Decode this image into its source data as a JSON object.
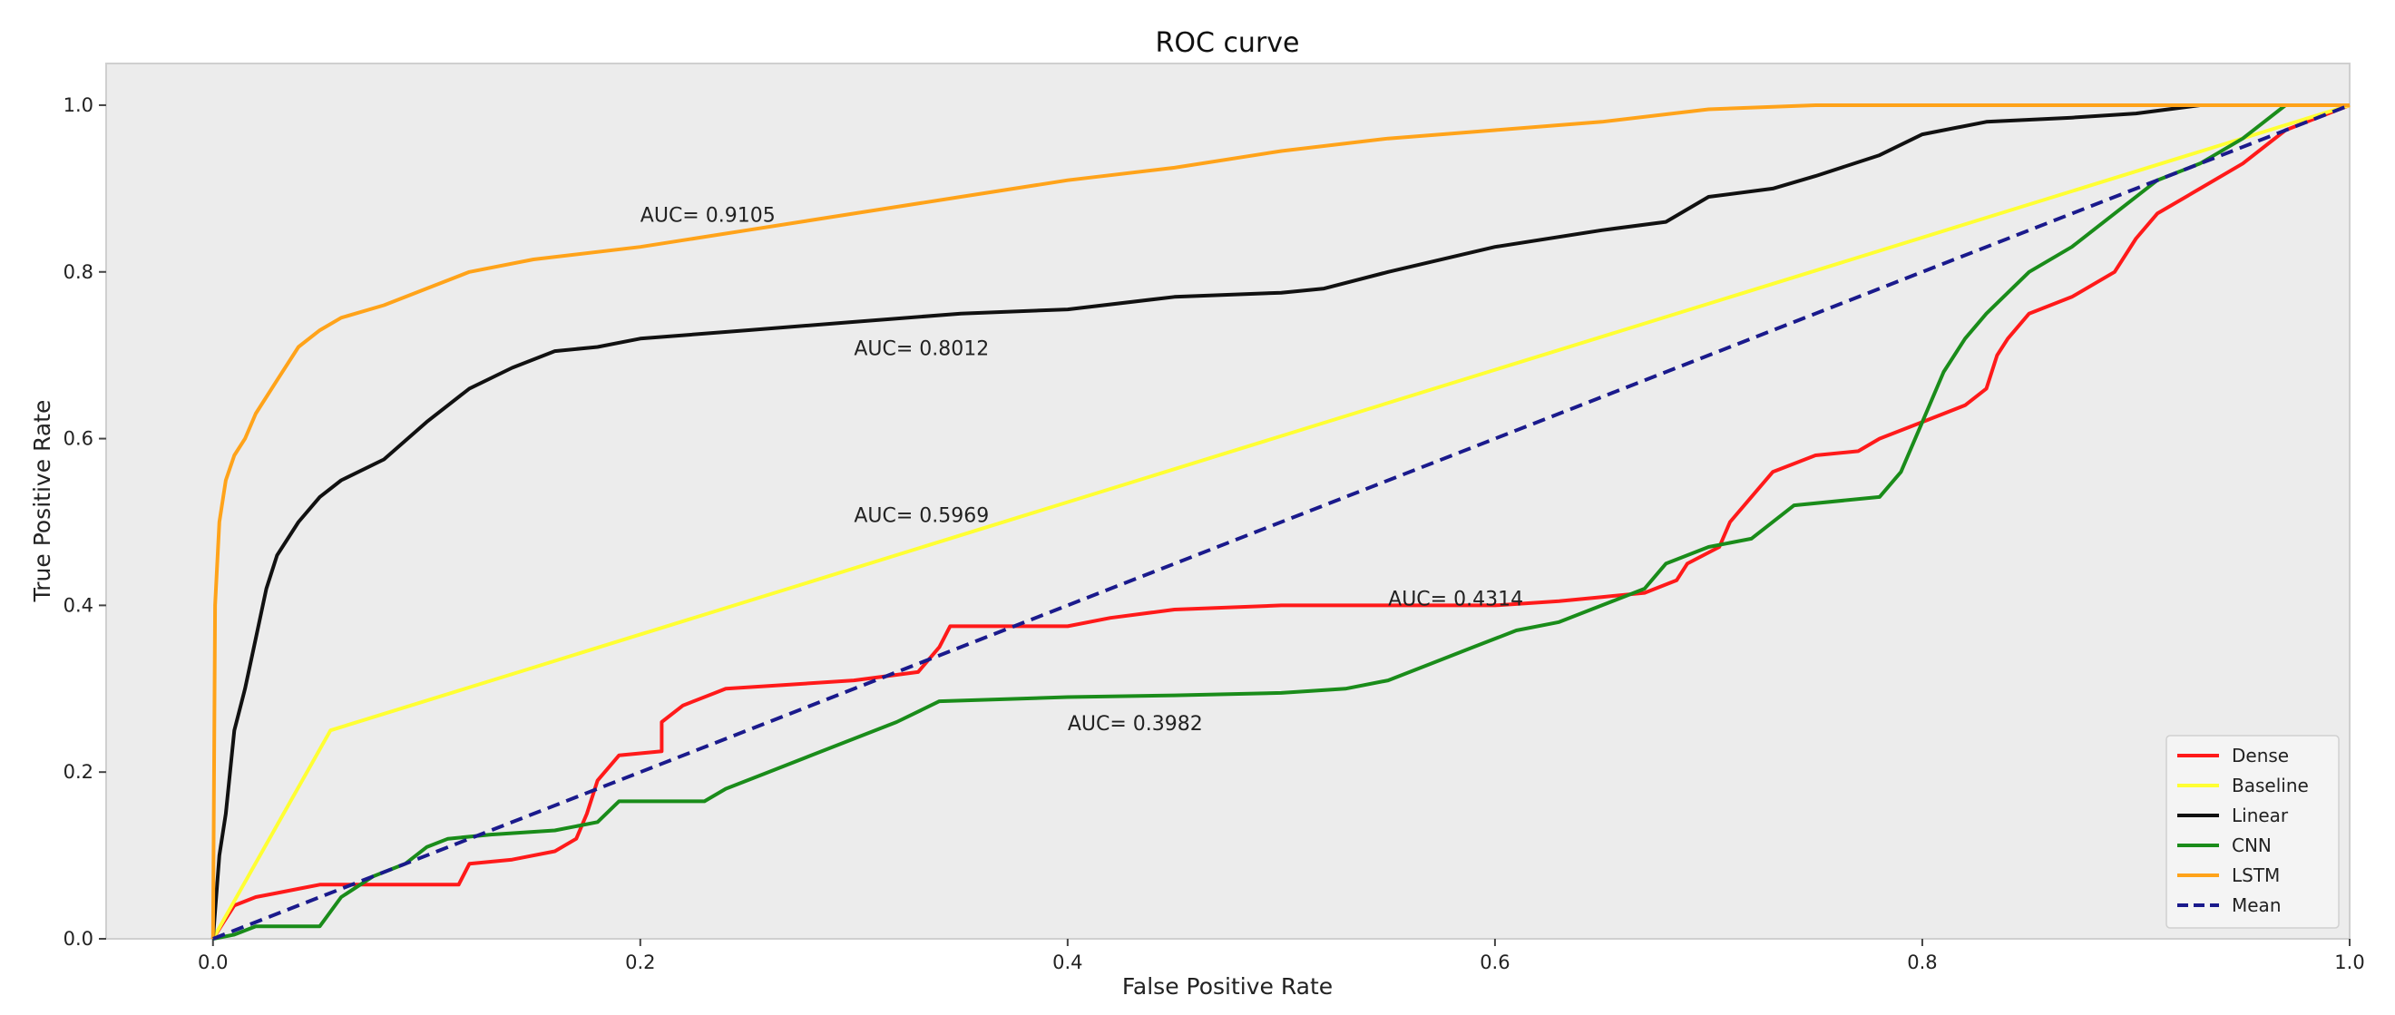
{
  "chart_data": {
    "type": "line",
    "title": "ROC curve",
    "xlabel": "False Positive Rate",
    "ylabel": "True Positive Rate",
    "xlim": [
      -0.05,
      1.0
    ],
    "ylim": [
      0.0,
      1.05
    ],
    "x_ticks": [
      "0.0",
      "0.2",
      "0.4",
      "0.6",
      "0.8",
      "1.0"
    ],
    "y_ticks": [
      "0.0",
      "0.2",
      "0.4",
      "0.6",
      "0.8",
      "1.0"
    ],
    "legend_position": "lower-right",
    "series": [
      {
        "name": "Dense",
        "color": "#ff1a1a",
        "dash": false,
        "auc_label": "AUC= 0.4314",
        "points": [
          [
            0,
            0
          ],
          [
            0.005,
            0.02
          ],
          [
            0.01,
            0.04
          ],
          [
            0.02,
            0.05
          ],
          [
            0.03,
            0.055
          ],
          [
            0.04,
            0.06
          ],
          [
            0.05,
            0.065
          ],
          [
            0.08,
            0.065
          ],
          [
            0.115,
            0.065
          ],
          [
            0.12,
            0.09
          ],
          [
            0.14,
            0.095
          ],
          [
            0.16,
            0.105
          ],
          [
            0.17,
            0.12
          ],
          [
            0.175,
            0.15
          ],
          [
            0.18,
            0.19
          ],
          [
            0.19,
            0.22
          ],
          [
            0.21,
            0.225
          ],
          [
            0.21,
            0.26
          ],
          [
            0.22,
            0.28
          ],
          [
            0.24,
            0.3
          ],
          [
            0.27,
            0.305
          ],
          [
            0.3,
            0.31
          ],
          [
            0.33,
            0.32
          ],
          [
            0.34,
            0.35
          ],
          [
            0.345,
            0.375
          ],
          [
            0.4,
            0.375
          ],
          [
            0.42,
            0.385
          ],
          [
            0.45,
            0.395
          ],
          [
            0.5,
            0.4
          ],
          [
            0.55,
            0.4
          ],
          [
            0.6,
            0.4
          ],
          [
            0.63,
            0.405
          ],
          [
            0.65,
            0.41
          ],
          [
            0.67,
            0.415
          ],
          [
            0.685,
            0.43
          ],
          [
            0.69,
            0.45
          ],
          [
            0.705,
            0.47
          ],
          [
            0.71,
            0.5
          ],
          [
            0.72,
            0.53
          ],
          [
            0.73,
            0.56
          ],
          [
            0.75,
            0.58
          ],
          [
            0.77,
            0.585
          ],
          [
            0.78,
            0.6
          ],
          [
            0.8,
            0.62
          ],
          [
            0.82,
            0.64
          ],
          [
            0.83,
            0.66
          ],
          [
            0.835,
            0.7
          ],
          [
            0.84,
            0.72
          ],
          [
            0.85,
            0.75
          ],
          [
            0.87,
            0.77
          ],
          [
            0.89,
            0.8
          ],
          [
            0.9,
            0.84
          ],
          [
            0.91,
            0.87
          ],
          [
            0.93,
            0.9
          ],
          [
            0.95,
            0.93
          ],
          [
            0.97,
            0.97
          ],
          [
            0.99,
            0.99
          ],
          [
            1.0,
            1.0
          ]
        ]
      },
      {
        "name": "Baseline",
        "color": "#ffff33",
        "dash": false,
        "auc_label": "AUC= 0.5969",
        "points": [
          [
            0,
            0
          ],
          [
            0.055,
            0.25
          ],
          [
            1.0,
            1.0
          ]
        ]
      },
      {
        "name": "Linear",
        "color": "#111111",
        "dash": false,
        "auc_label": "AUC= 0.8012",
        "points": [
          [
            0,
            0
          ],
          [
            0.003,
            0.1
          ],
          [
            0.006,
            0.15
          ],
          [
            0.01,
            0.25
          ],
          [
            0.015,
            0.3
          ],
          [
            0.02,
            0.36
          ],
          [
            0.025,
            0.42
          ],
          [
            0.03,
            0.46
          ],
          [
            0.04,
            0.5
          ],
          [
            0.05,
            0.53
          ],
          [
            0.06,
            0.55
          ],
          [
            0.08,
            0.575
          ],
          [
            0.1,
            0.62
          ],
          [
            0.12,
            0.66
          ],
          [
            0.14,
            0.685
          ],
          [
            0.16,
            0.705
          ],
          [
            0.18,
            0.71
          ],
          [
            0.2,
            0.72
          ],
          [
            0.25,
            0.73
          ],
          [
            0.3,
            0.74
          ],
          [
            0.35,
            0.75
          ],
          [
            0.4,
            0.755
          ],
          [
            0.45,
            0.77
          ],
          [
            0.5,
            0.775
          ],
          [
            0.52,
            0.78
          ],
          [
            0.55,
            0.8
          ],
          [
            0.6,
            0.83
          ],
          [
            0.65,
            0.85
          ],
          [
            0.68,
            0.86
          ],
          [
            0.7,
            0.89
          ],
          [
            0.73,
            0.9
          ],
          [
            0.75,
            0.915
          ],
          [
            0.78,
            0.94
          ],
          [
            0.8,
            0.965
          ],
          [
            0.83,
            0.98
          ],
          [
            0.87,
            0.985
          ],
          [
            0.9,
            0.99
          ],
          [
            0.93,
            1.0
          ],
          [
            1.0,
            1.0
          ]
        ]
      },
      {
        "name": "CNN",
        "color": "#1a8c1a",
        "dash": false,
        "auc_label": "AUC= 0.3982",
        "points": [
          [
            0,
            0
          ],
          [
            0.01,
            0.005
          ],
          [
            0.02,
            0.015
          ],
          [
            0.05,
            0.015
          ],
          [
            0.06,
            0.05
          ],
          [
            0.075,
            0.075
          ],
          [
            0.09,
            0.09
          ],
          [
            0.1,
            0.11
          ],
          [
            0.11,
            0.12
          ],
          [
            0.13,
            0.125
          ],
          [
            0.16,
            0.13
          ],
          [
            0.18,
            0.14
          ],
          [
            0.19,
            0.165
          ],
          [
            0.23,
            0.165
          ],
          [
            0.24,
            0.18
          ],
          [
            0.26,
            0.2
          ],
          [
            0.28,
            0.22
          ],
          [
            0.3,
            0.24
          ],
          [
            0.32,
            0.26
          ],
          [
            0.34,
            0.285
          ],
          [
            0.4,
            0.29
          ],
          [
            0.45,
            0.292
          ],
          [
            0.5,
            0.295
          ],
          [
            0.53,
            0.3
          ],
          [
            0.55,
            0.31
          ],
          [
            0.57,
            0.33
          ],
          [
            0.59,
            0.35
          ],
          [
            0.61,
            0.37
          ],
          [
            0.63,
            0.38
          ],
          [
            0.65,
            0.4
          ],
          [
            0.67,
            0.42
          ],
          [
            0.68,
            0.45
          ],
          [
            0.7,
            0.47
          ],
          [
            0.72,
            0.48
          ],
          [
            0.74,
            0.52
          ],
          [
            0.78,
            0.53
          ],
          [
            0.79,
            0.56
          ],
          [
            0.8,
            0.62
          ],
          [
            0.81,
            0.68
          ],
          [
            0.82,
            0.72
          ],
          [
            0.83,
            0.75
          ],
          [
            0.85,
            0.8
          ],
          [
            0.87,
            0.83
          ],
          [
            0.89,
            0.87
          ],
          [
            0.91,
            0.91
          ],
          [
            0.93,
            0.93
          ],
          [
            0.95,
            0.96
          ],
          [
            0.97,
            1.0
          ],
          [
            1.0,
            1.0
          ]
        ]
      },
      {
        "name": "LSTM",
        "color": "#ffa31a",
        "dash": false,
        "auc_label": "AUC= 0.9105",
        "points": [
          [
            0,
            0
          ],
          [
            0.001,
            0.4
          ],
          [
            0.003,
            0.5
          ],
          [
            0.006,
            0.55
          ],
          [
            0.01,
            0.58
          ],
          [
            0.015,
            0.6
          ],
          [
            0.02,
            0.63
          ],
          [
            0.03,
            0.67
          ],
          [
            0.04,
            0.71
          ],
          [
            0.05,
            0.73
          ],
          [
            0.06,
            0.745
          ],
          [
            0.08,
            0.76
          ],
          [
            0.1,
            0.78
          ],
          [
            0.12,
            0.8
          ],
          [
            0.15,
            0.815
          ],
          [
            0.2,
            0.83
          ],
          [
            0.25,
            0.85
          ],
          [
            0.3,
            0.87
          ],
          [
            0.35,
            0.89
          ],
          [
            0.4,
            0.91
          ],
          [
            0.45,
            0.925
          ],
          [
            0.5,
            0.945
          ],
          [
            0.55,
            0.96
          ],
          [
            0.6,
            0.97
          ],
          [
            0.65,
            0.98
          ],
          [
            0.7,
            0.995
          ],
          [
            0.75,
            1.0
          ],
          [
            1.0,
            1.0
          ]
        ]
      },
      {
        "name": "Mean",
        "color": "#1a1a8c",
        "dash": true,
        "auc_label": "",
        "points": [
          [
            0,
            0
          ],
          [
            1.0,
            1.0
          ]
        ]
      }
    ],
    "annotations": [
      {
        "text": "AUC= 0.9105",
        "x": 0.2,
        "y": 0.86
      },
      {
        "text": "AUC= 0.8012",
        "x": 0.3,
        "y": 0.7
      },
      {
        "text": "AUC= 0.5969",
        "x": 0.3,
        "y": 0.5
      },
      {
        "text": "AUC= 0.4314",
        "x": 0.55,
        "y": 0.4
      },
      {
        "text": "AUC= 0.3982",
        "x": 0.4,
        "y": 0.25
      }
    ]
  }
}
